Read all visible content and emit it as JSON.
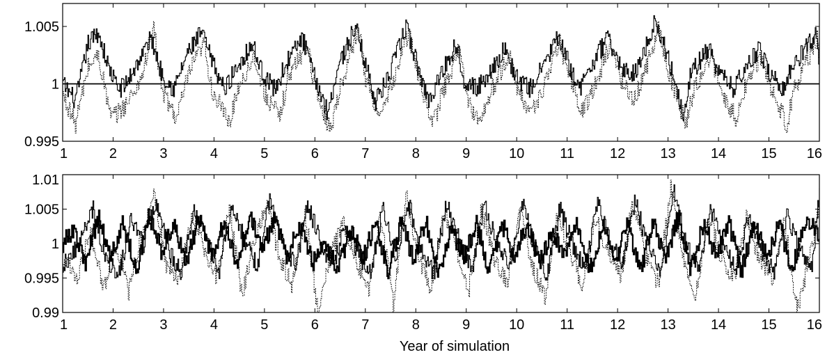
{
  "chart_data": [
    {
      "type": "line",
      "title": "",
      "xlabel": "",
      "ylabel": "",
      "xlim": [
        1,
        16
      ],
      "ylim": [
        0.995,
        1.007
      ],
      "grid": false,
      "legend": "none",
      "xticks": [
        "1",
        "2",
        "3",
        "4",
        "5",
        "6",
        "7",
        "8",
        "9",
        "10",
        "11",
        "12",
        "13",
        "14",
        "15",
        "16"
      ],
      "yticks": [
        "0.995",
        "1",
        "1.005"
      ],
      "ytick_values": [
        0.995,
        1.0,
        1.005
      ],
      "reference_line": 1.0,
      "series": [
        {
          "style": "solid",
          "x": [
            1.0,
            1.25,
            1.5,
            1.7,
            1.9,
            2.1,
            2.25,
            2.5,
            2.75,
            2.95,
            3.2,
            3.45,
            3.75,
            3.95,
            4.2,
            4.45,
            4.75,
            4.95,
            5.2,
            5.45,
            5.75,
            5.95,
            6.25,
            6.45,
            6.8,
            6.95,
            7.2,
            7.45,
            7.8,
            8.0,
            8.25,
            8.45,
            8.8,
            8.95,
            9.2,
            9.45,
            9.75,
            10.0,
            10.25,
            10.45,
            10.8,
            11.0,
            11.25,
            11.45,
            11.8,
            12.0,
            12.25,
            12.45,
            12.75,
            12.95,
            13.3,
            13.45,
            13.8,
            14.0,
            14.3,
            14.45,
            14.8,
            15.0,
            15.3,
            15.45,
            15.95,
            16.0
          ],
          "y": [
            1.0,
            0.9985,
            1.0035,
            1.0045,
            1.0015,
            0.9995,
            1.0,
            1.002,
            1.004,
            1.001,
            0.9995,
            1.0025,
            1.0045,
            1.002,
            0.9995,
            1.0015,
            1.0035,
            1.001,
            0.9995,
            1.002,
            1.004,
            1.001,
            0.9975,
            1.0015,
            1.005,
            1.0025,
            0.9985,
            1.0005,
            1.005,
            1.002,
            0.9985,
            1.0005,
            1.0035,
            1.0005,
            0.9995,
            1.001,
            1.003,
            1.0005,
            0.9995,
            1.001,
            1.004,
            1.002,
            0.9995,
            1.0015,
            1.004,
            1.002,
            1.0005,
            1.002,
            1.0055,
            1.003,
            0.9975,
            1.001,
            1.003,
            1.001,
            0.9995,
            1.001,
            1.003,
            1.001,
            0.9995,
            1.0015,
            1.0045,
            1.0015
          ]
        },
        {
          "style": "dotted",
          "x": [
            1.0,
            1.25,
            1.5,
            1.7,
            1.95,
            2.1,
            2.3,
            2.55,
            2.8,
            2.95,
            3.25,
            3.5,
            3.8,
            3.95,
            4.3,
            4.45,
            4.8,
            4.95,
            5.3,
            5.45,
            5.85,
            6.0,
            6.3,
            6.45,
            6.85,
            7.0,
            7.3,
            7.45,
            7.85,
            8.05,
            8.35,
            8.5,
            8.85,
            9.0,
            9.25,
            9.5,
            9.85,
            10.05,
            10.3,
            10.5,
            10.85,
            11.05,
            11.3,
            11.5,
            11.85,
            12.05,
            12.3,
            12.5,
            12.8,
            13.0,
            13.35,
            13.5,
            13.85,
            14.05,
            14.35,
            14.5,
            14.85,
            15.05,
            15.35,
            15.5,
            15.95,
            16.0
          ],
          "y": [
            0.999,
            0.9965,
            1.0015,
            1.0025,
            0.997,
            0.9975,
            0.9985,
            1.0005,
            1.005,
            0.9995,
            0.997,
            1.001,
            1.0035,
            0.9995,
            0.9965,
            0.9995,
            1.0025,
            0.9995,
            0.997,
            1.0005,
            1.0035,
            0.9995,
            0.996,
            0.999,
            1.005,
            1.0005,
            0.997,
            0.999,
            1.0045,
            1.0005,
            0.9965,
            0.999,
            1.003,
            0.999,
            0.9965,
            0.9995,
            1.0025,
            0.999,
            0.9975,
            0.9995,
            1.0035,
            1.0005,
            0.9975,
            0.9995,
            1.0035,
            1.0005,
            0.9985,
            1.0005,
            1.005,
            1.001,
            0.9965,
            0.9995,
            1.0025,
            0.999,
            0.997,
            0.9995,
            1.0025,
            0.9995,
            0.9965,
            0.9995,
            1.004,
            1.0005
          ]
        }
      ]
    },
    {
      "type": "line",
      "title": "",
      "xlabel": "Year of simulation",
      "ylabel": "",
      "xlim": [
        1,
        16
      ],
      "ylim": [
        0.99,
        1.01
      ],
      "grid": false,
      "legend": "none",
      "xticks": [
        "1",
        "2",
        "3",
        "4",
        "5",
        "6",
        "7",
        "8",
        "9",
        "10",
        "11",
        "12",
        "13",
        "14",
        "15",
        "16"
      ],
      "yticks": [
        "0.99",
        "0.995",
        "1",
        "1.005",
        "1.01"
      ],
      "ytick_values": [
        0.99,
        0.995,
        1.0,
        1.005,
        1.01
      ],
      "series": [
        {
          "style": "thick-solid",
          "x": [
            1.0,
            1.2,
            1.45,
            1.7,
            1.95,
            2.2,
            2.45,
            2.7,
            2.95,
            3.2,
            3.45,
            3.7,
            3.95,
            4.2,
            4.45,
            4.7,
            4.95,
            5.2,
            5.45,
            5.7,
            5.95,
            6.2,
            6.45,
            6.7,
            6.95,
            7.2,
            7.45,
            7.7,
            7.95,
            8.2,
            8.45,
            8.7,
            8.95,
            9.2,
            9.45,
            9.7,
            9.95,
            10.2,
            10.45,
            10.7,
            10.95,
            11.2,
            11.45,
            11.7,
            11.95,
            12.2,
            12.45,
            12.7,
            12.95,
            13.2,
            13.45,
            13.7,
            13.95,
            14.2,
            14.45,
            14.7,
            14.95,
            15.2,
            15.45,
            15.7,
            15.95,
            16.0
          ],
          "y": [
            1.0,
            1.002,
            0.997,
            1.004,
            0.998,
            1.003,
            0.996,
            1.004,
            0.999,
            1.003,
            0.997,
            1.004,
            0.998,
            1.003,
            0.997,
            1.004,
            0.999,
            1.004,
            0.998,
            1.003,
            0.997,
            1.0,
            0.996,
            1.002,
            0.998,
            1.003,
            0.996,
            1.003,
            0.998,
            1.003,
            0.996,
            1.002,
            0.998,
            1.003,
            0.996,
            1.003,
            0.998,
            1.003,
            0.997,
            1.002,
            0.998,
            1.003,
            0.996,
            1.003,
            0.998,
            1.003,
            0.996,
            1.003,
            0.998,
            1.004,
            0.996,
            1.003,
            0.998,
            1.003,
            0.996,
            1.003,
            0.998,
            1.003,
            0.996,
            1.003,
            1.002,
            1.001
          ]
        },
        {
          "style": "solid",
          "x": [
            1.0,
            1.3,
            1.6,
            1.8,
            2.1,
            2.35,
            2.6,
            2.85,
            3.1,
            3.35,
            3.6,
            3.85,
            4.1,
            4.35,
            4.6,
            4.85,
            5.1,
            5.35,
            5.6,
            5.85,
            6.1,
            6.35,
            6.6,
            6.85,
            7.1,
            7.35,
            7.6,
            7.85,
            8.1,
            8.35,
            8.6,
            8.85,
            9.1,
            9.35,
            9.6,
            9.85,
            10.1,
            10.35,
            10.6,
            10.85,
            11.1,
            11.35,
            11.6,
            11.85,
            12.1,
            12.35,
            12.6,
            12.85,
            13.1,
            13.35,
            13.6,
            13.85,
            14.1,
            14.35,
            14.6,
            14.85,
            15.1,
            15.35,
            15.6,
            15.85,
            16.0
          ],
          "y": [
            0.997,
            0.9995,
            1.005,
            0.999,
            0.995,
            1.0035,
            1.0,
            1.0065,
            0.999,
            0.9955,
            1.005,
            1.001,
            0.996,
            1.006,
            1.0005,
            0.9965,
            1.0065,
            1.001,
            0.9965,
            1.0055,
            1.0005,
            0.9965,
            1.003,
            0.9985,
            0.9955,
            1.0055,
            0.998,
            1.006,
            0.999,
            0.9955,
            1.006,
            1.0005,
            0.996,
            1.0055,
            1.0,
            0.9965,
            1.006,
            0.9995,
            0.9955,
            1.005,
            1.0,
            0.996,
            1.006,
            1.0005,
            0.997,
            1.0065,
            0.999,
            0.996,
            1.008,
            1.0,
            0.996,
            1.005,
            0.999,
            0.9965,
            1.004,
            0.999,
            0.996,
            1.0045,
            0.999,
            0.997,
            1.008
          ]
        },
        {
          "style": "dotted",
          "x": [
            1.0,
            1.3,
            1.55,
            1.8,
            2.05,
            2.3,
            2.55,
            2.8,
            3.05,
            3.3,
            3.55,
            3.8,
            4.05,
            4.3,
            4.55,
            4.8,
            5.05,
            5.3,
            5.55,
            5.8,
            6.05,
            6.3,
            6.55,
            6.8,
            7.05,
            7.3,
            7.55,
            7.8,
            8.05,
            8.3,
            8.55,
            8.8,
            9.05,
            9.3,
            9.55,
            9.8,
            10.05,
            10.3,
            10.55,
            10.8,
            11.05,
            11.3,
            11.55,
            11.8,
            12.05,
            12.3,
            12.55,
            12.8,
            13.05,
            13.3,
            13.55,
            13.8,
            14.05,
            14.3,
            14.55,
            14.8,
            15.05,
            15.3,
            15.55,
            15.8,
            16.0
          ],
          "y": [
            0.998,
            0.995,
            1.002,
            0.9935,
            1.0,
            0.993,
            1.001,
            1.007,
            0.997,
            0.9945,
            1.004,
            0.999,
            0.995,
            1.005,
            0.9925,
            1.001,
            1.006,
            0.9975,
            0.994,
            1.0045,
            0.9905,
            0.998,
            1.003,
            0.998,
            0.993,
            1.004,
            0.991,
            1.0075,
            0.998,
            0.9935,
            1.005,
            0.999,
            0.9935,
            1.005,
            0.998,
            0.994,
            1.0055,
            0.997,
            0.992,
            1.004,
            0.999,
            0.9935,
            1.004,
            0.999,
            0.995,
            1.006,
            0.998,
            0.994,
            1.008,
            0.998,
            0.9925,
            1.004,
            0.998,
            0.995,
            1.0035,
            0.998,
            0.995,
            1.0035,
            0.9905,
            0.998,
            1.005
          ]
        }
      ]
    }
  ]
}
